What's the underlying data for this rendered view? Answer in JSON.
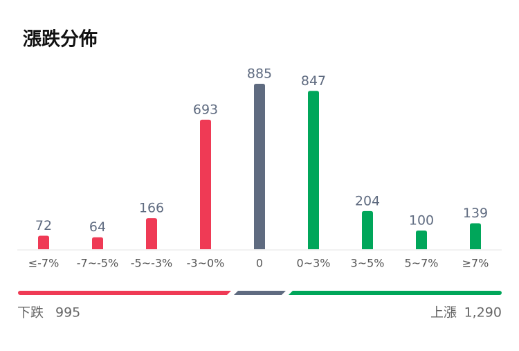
{
  "chart_data": {
    "type": "bar",
    "title": "漲跌分佈",
    "categories": [
      "≤-7%",
      "-7~-5%",
      "-5~-3%",
      "-3~0%",
      "0",
      "0~3%",
      "3~5%",
      "5~7%",
      "≥7%"
    ],
    "values": [
      72,
      64,
      166,
      693,
      885,
      847,
      204,
      100,
      139
    ],
    "colors": [
      "#ef3a55",
      "#ef3a55",
      "#ef3a55",
      "#ef3a55",
      "#5f6b80",
      "#00a65a",
      "#00a65a",
      "#00a65a",
      "#00a65a"
    ]
  },
  "summary": {
    "down": {
      "label": "下跌",
      "value": 995
    },
    "up": {
      "label": "上漲",
      "value": 1290,
      "value_label": "1,290"
    }
  }
}
